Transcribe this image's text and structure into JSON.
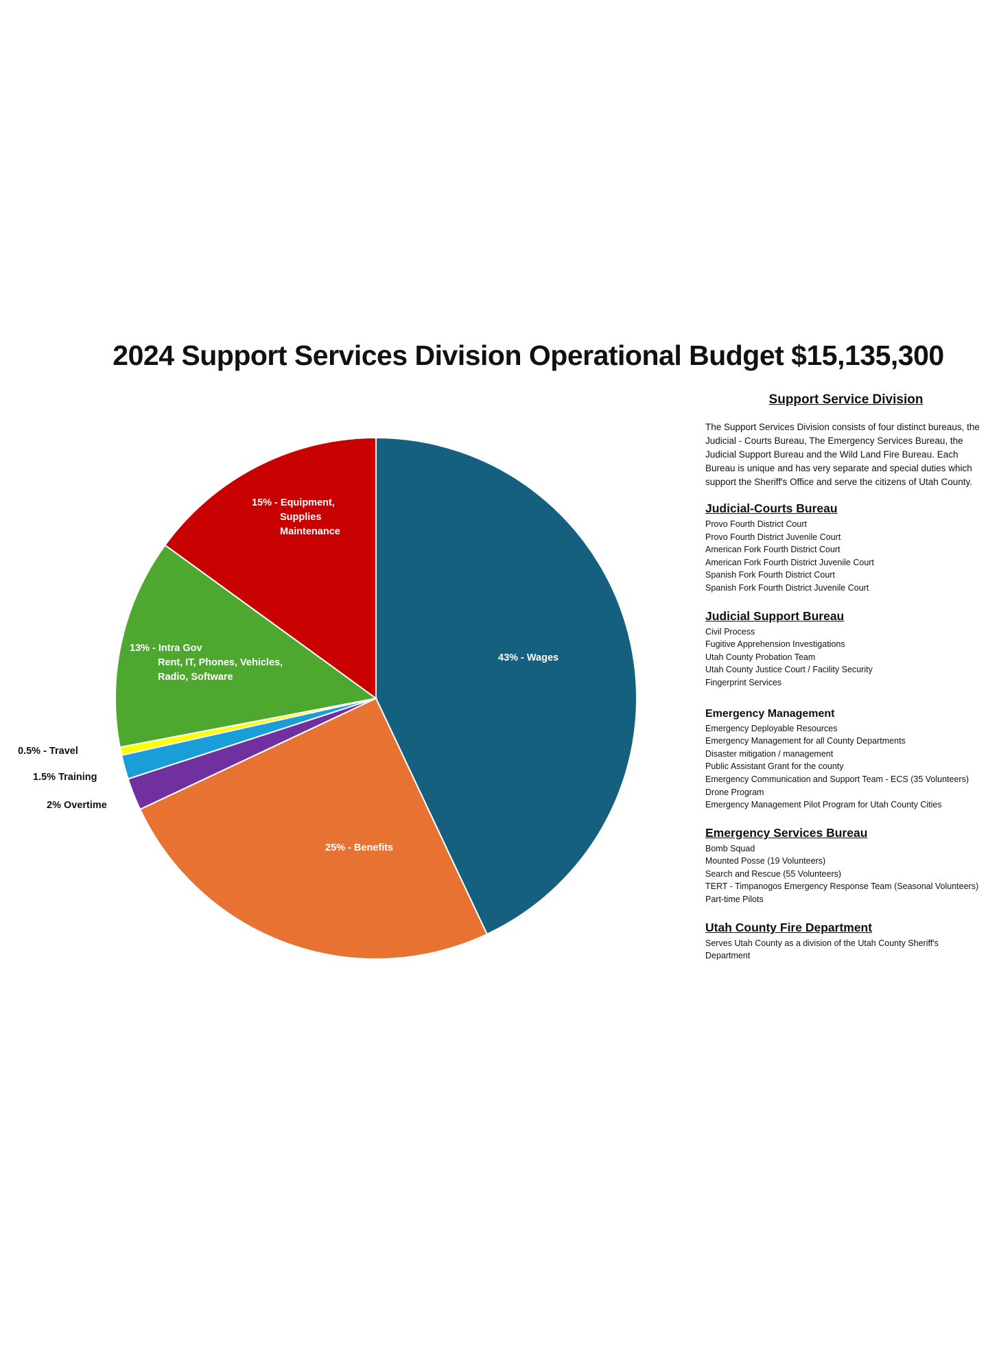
{
  "title": "2024 Support Services Division Operational Budget $15,135,300",
  "chart_data": {
    "type": "pie",
    "title": "2024 Support Services Division Operational Budget $15,135,300",
    "start_angle_deg": 0,
    "direction": "clockwise",
    "slices": [
      {
        "key": "wages",
        "value": 43,
        "label_lines": [
          "43% - Wages"
        ],
        "color": "#16607f",
        "label_inside": true
      },
      {
        "key": "benefits",
        "value": 25,
        "label_lines": [
          "25% - Benefits"
        ],
        "color": "#e87232",
        "label_inside": true
      },
      {
        "key": "overtime",
        "value": 2,
        "label_lines": [
          "2% Overtime"
        ],
        "color": "#7030a0",
        "label_inside": false
      },
      {
        "key": "training",
        "value": 1.5,
        "label_lines": [
          "1.5% Training"
        ],
        "color": "#1a9ed8",
        "label_inside": false
      },
      {
        "key": "travel",
        "value": 0.5,
        "label_lines": [
          "0.5% - Travel"
        ],
        "color": "#ffff00",
        "label_inside": false
      },
      {
        "key": "intra-gov",
        "value": 13,
        "label_lines": [
          "13% - Intra Gov",
          "Rent, IT, Phones, Vehicles,",
          "Radio, Software"
        ],
        "color": "#4ea72e",
        "label_inside": true
      },
      {
        "key": "equipment",
        "value": 15,
        "label_lines": [
          "15% - Equipment,",
          "Supplies",
          "Maintenance"
        ],
        "color": "#c90000",
        "label_inside": true
      }
    ]
  },
  "panel": {
    "heading": "Support Service Division",
    "intro": "The Support Services Division consists of four distinct bureaus, the Judicial - Courts Bureau, The Emergency Services Bureau, the Judicial Support Bureau and the Wild Land Fire Bureau. Each Bureau is unique and has very separate and special duties which support the Sheriff's Office and serve the citizens of Utah County.",
    "bureaus": [
      {
        "title": "Judicial-Courts Bureau",
        "items": [
          "Provo Fourth District Court",
          "Provo Fourth District Juvenile Court",
          "American Fork Fourth District Court",
          "American Fork Fourth District Juvenile Court",
          "Spanish Fork Fourth District Court",
          "Spanish Fork Fourth District Juvenile Court"
        ]
      },
      {
        "title": "Judicial Support Bureau",
        "items": [
          "Civil Process",
          "Fugitive Apprehension Investigations",
          "Utah County Probation Team",
          "Utah County Justice Court / Facility Security",
          "Fingerprint Services"
        ]
      },
      {
        "title": "Emergency Management",
        "items": [
          "Emergency Deployable Resources",
          "Emergency Management for all County Departments",
          "Disaster mitigation / management",
          "Public Assistant Grant for the county",
          "Emergency Communication and Support Team - ECS (35 Volunteers)",
          "Drone Program",
          "Emergency Management Pilot Program for Utah County Cities"
        ]
      },
      {
        "title": "Emergency Services Bureau",
        "items": [
          "Bomb Squad",
          "Mounted Posse (19 Volunteers)",
          "Search and Rescue (55 Volunteers)",
          "TERT - Timpanogos Emergency Response Team (Seasonal Volunteers)",
          "Part-time Pilots"
        ]
      },
      {
        "title": "Utah County Fire Department",
        "items": [
          "Serves Utah County as a division of the Utah County Sheriff's Department"
        ]
      }
    ]
  }
}
